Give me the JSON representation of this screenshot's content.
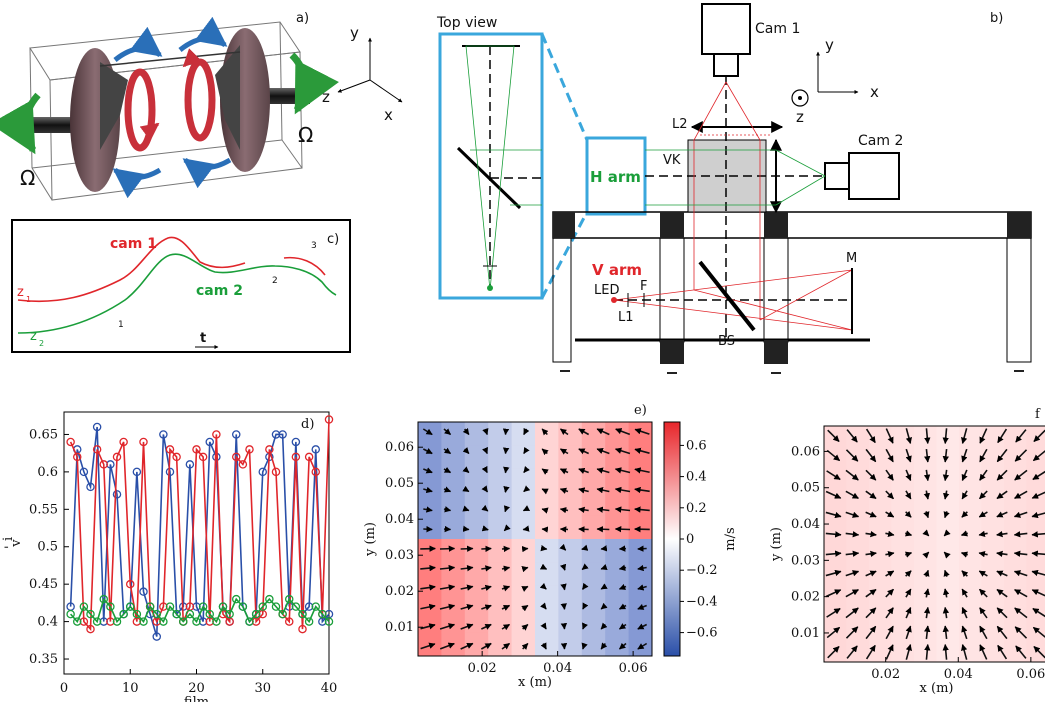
{
  "panel_a": {
    "label": "a)",
    "omega_left": "Ω",
    "omega_right": "Ω",
    "axis_y": "y",
    "axis_z": "z",
    "axis_x": "x"
  },
  "panel_b": {
    "label": "b)",
    "top_view": "Top view",
    "cam1": "Cam 1",
    "cam2": "Cam 2",
    "h_arm": "H arm",
    "v_arm": "V arm",
    "l2": "L2",
    "vk": "VK",
    "led": "LED",
    "f": "F",
    "l1": "L1",
    "bs": "BS",
    "m": "M",
    "axis_y": "y",
    "axis_x": "x",
    "axis_z": "z"
  },
  "panel_c": {
    "label": "c)",
    "cam1": "cam 1",
    "cam2": "cam 2",
    "z1": "z",
    "z1_sub": "1",
    "z2": "z",
    "z2_sub": "2",
    "seg1": "1",
    "seg2": "2",
    "seg3": "3",
    "t": "t"
  },
  "colors": {
    "red": "#e0262b",
    "green": "#1a9e3a",
    "blue": "#2a4fa8",
    "cyan": "#3aa7dc",
    "gray": "#888888"
  },
  "chart_data": [
    {
      "type": "line",
      "panel": "d)",
      "xlabel": "film",
      "ylabel": "v'_i",
      "xlim": [
        0,
        40
      ],
      "ylim": [
        0.33,
        0.68
      ],
      "xticks": [
        0,
        10,
        20,
        30,
        40
      ],
      "yticks": [
        0.35,
        0.4,
        0.45,
        0.5,
        0.55,
        0.6,
        0.65
      ],
      "ytick_labels": [
        "0.35",
        "0.4",
        "0.45",
        "0.5",
        "0.55",
        "0.6",
        "0.65"
      ],
      "ylabel_main": "v",
      "ylabel_sub": "i",
      "ylabel_prime": "'",
      "series": [
        {
          "color": "#2a4fa8",
          "x": [
            1,
            2,
            3,
            4,
            5,
            6,
            7,
            8,
            9,
            10,
            11,
            12,
            13,
            14,
            15,
            16,
            17,
            18,
            19,
            20,
            21,
            22,
            23,
            24,
            25,
            26,
            27,
            28,
            29,
            30,
            31,
            32,
            33,
            34,
            35,
            36,
            37,
            38,
            39,
            40
          ],
          "values": [
            0.42,
            0.63,
            0.6,
            0.58,
            0.66,
            0.4,
            0.61,
            0.57,
            0.41,
            0.42,
            0.6,
            0.44,
            0.41,
            0.38,
            0.65,
            0.6,
            0.41,
            0.42,
            0.61,
            0.42,
            0.4,
            0.64,
            0.62,
            0.42,
            0.4,
            0.65,
            0.42,
            0.4,
            0.41,
            0.6,
            0.62,
            0.65,
            0.65,
            0.42,
            0.64,
            0.41,
            0.42,
            0.63,
            0.4,
            0.41
          ]
        },
        {
          "color": "#e0262b",
          "x": [
            1,
            2,
            3,
            4,
            5,
            6,
            7,
            8,
            9,
            10,
            11,
            12,
            13,
            14,
            15,
            16,
            17,
            18,
            19,
            20,
            21,
            22,
            23,
            24,
            25,
            26,
            27,
            28,
            29,
            30,
            31,
            32,
            33,
            34,
            35,
            36,
            37,
            38,
            39,
            40
          ],
          "values": [
            0.64,
            0.62,
            0.4,
            0.39,
            0.63,
            0.61,
            0.4,
            0.62,
            0.64,
            0.45,
            0.4,
            0.64,
            0.42,
            0.4,
            0.42,
            0.63,
            0.62,
            0.4,
            0.42,
            0.63,
            0.62,
            0.4,
            0.65,
            0.41,
            0.4,
            0.62,
            0.61,
            0.63,
            0.4,
            0.41,
            0.63,
            0.6,
            0.41,
            0.4,
            0.62,
            0.39,
            0.62,
            0.6,
            0.41,
            0.67
          ]
        },
        {
          "color": "#1a9e3a",
          "x": [
            1,
            2,
            3,
            4,
            5,
            6,
            7,
            8,
            9,
            10,
            11,
            12,
            13,
            14,
            15,
            16,
            17,
            18,
            19,
            20,
            21,
            22,
            23,
            24,
            25,
            26,
            27,
            28,
            29,
            30,
            31,
            32,
            33,
            34,
            35,
            36,
            37,
            38,
            39,
            40
          ],
          "values": [
            0.41,
            0.4,
            0.42,
            0.41,
            0.4,
            0.43,
            0.42,
            0.4,
            0.41,
            0.42,
            0.41,
            0.4,
            0.42,
            0.41,
            0.4,
            0.42,
            0.41,
            0.4,
            0.41,
            0.4,
            0.42,
            0.41,
            0.4,
            0.42,
            0.41,
            0.43,
            0.42,
            0.4,
            0.41,
            0.42,
            0.43,
            0.42,
            0.41,
            0.43,
            0.42,
            0.41,
            0.4,
            0.42,
            0.41,
            0.4
          ]
        }
      ]
    },
    {
      "type": "heatmap",
      "panel": "e)",
      "xlabel": "x (m)",
      "ylabel": "y (m)",
      "xticks": [
        0.02,
        0.04,
        0.06
      ],
      "yticks": [
        0.01,
        0.02,
        0.03,
        0.04,
        0.05,
        0.06
      ],
      "colorbar_ticks": [
        "0.6",
        "0.4",
        "0.2",
        "0",
        "−0.2",
        "−0.4",
        "−0.6"
      ],
      "colorbar_label": "m/s",
      "colorbar_range": [
        -0.75,
        0.75
      ]
    },
    {
      "type": "heatmap",
      "panel": "f",
      "xlabel": "x (m)",
      "ylabel": "y (m)",
      "xticks": [
        0.02,
        0.04,
        0.06
      ],
      "xtick_labels": [
        "0.02",
        "0.04",
        "0.06"
      ],
      "yticks": [
        0.01,
        0.02,
        0.03,
        0.04,
        0.05,
        0.06
      ]
    }
  ]
}
